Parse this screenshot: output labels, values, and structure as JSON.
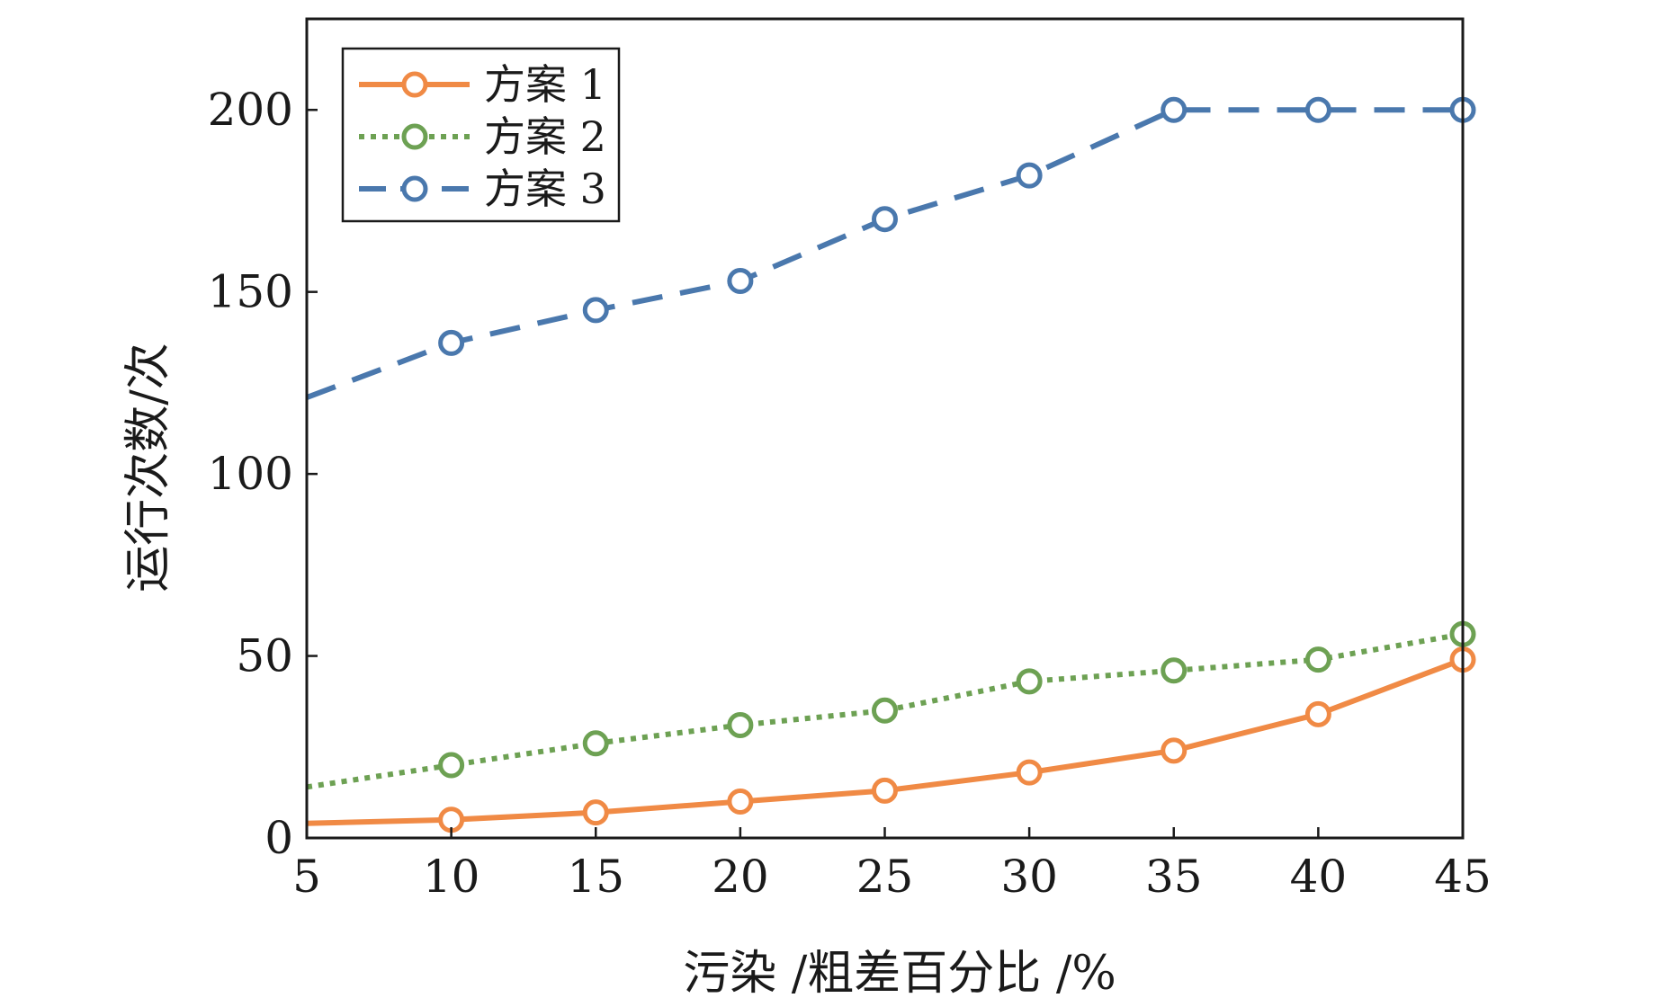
{
  "chart_data": {
    "type": "line",
    "title": "",
    "xlabel": "污染 /粗差百分比 /%",
    "ylabel": "运行次数/次",
    "x": [
      5,
      10,
      15,
      20,
      25,
      30,
      35,
      40,
      45
    ],
    "xlim": [
      5,
      45
    ],
    "ylim": [
      0,
      225
    ],
    "xticks": [
      5,
      10,
      15,
      20,
      25,
      30,
      35,
      40,
      45
    ],
    "yticks": [
      0,
      50,
      100,
      150,
      200
    ],
    "grid": false,
    "legend_position": "top-left",
    "series": [
      {
        "name": "方案 1",
        "color": "#f08a45",
        "line_style": "solid",
        "marker": "open-circle",
        "values": [
          4,
          5,
          7,
          10,
          13,
          18,
          24,
          34,
          49
        ]
      },
      {
        "name": "方案 2",
        "color": "#6da153",
        "line_style": "dotted",
        "marker": "open-circle",
        "values": [
          14,
          20,
          26,
          31,
          35,
          43,
          46,
          49,
          56
        ]
      },
      {
        "name": "方案 3",
        "color": "#4a78ad",
        "line_style": "dashed",
        "marker": "open-circle",
        "values": [
          121,
          136,
          145,
          153,
          170,
          182,
          200,
          200,
          200
        ]
      }
    ]
  }
}
